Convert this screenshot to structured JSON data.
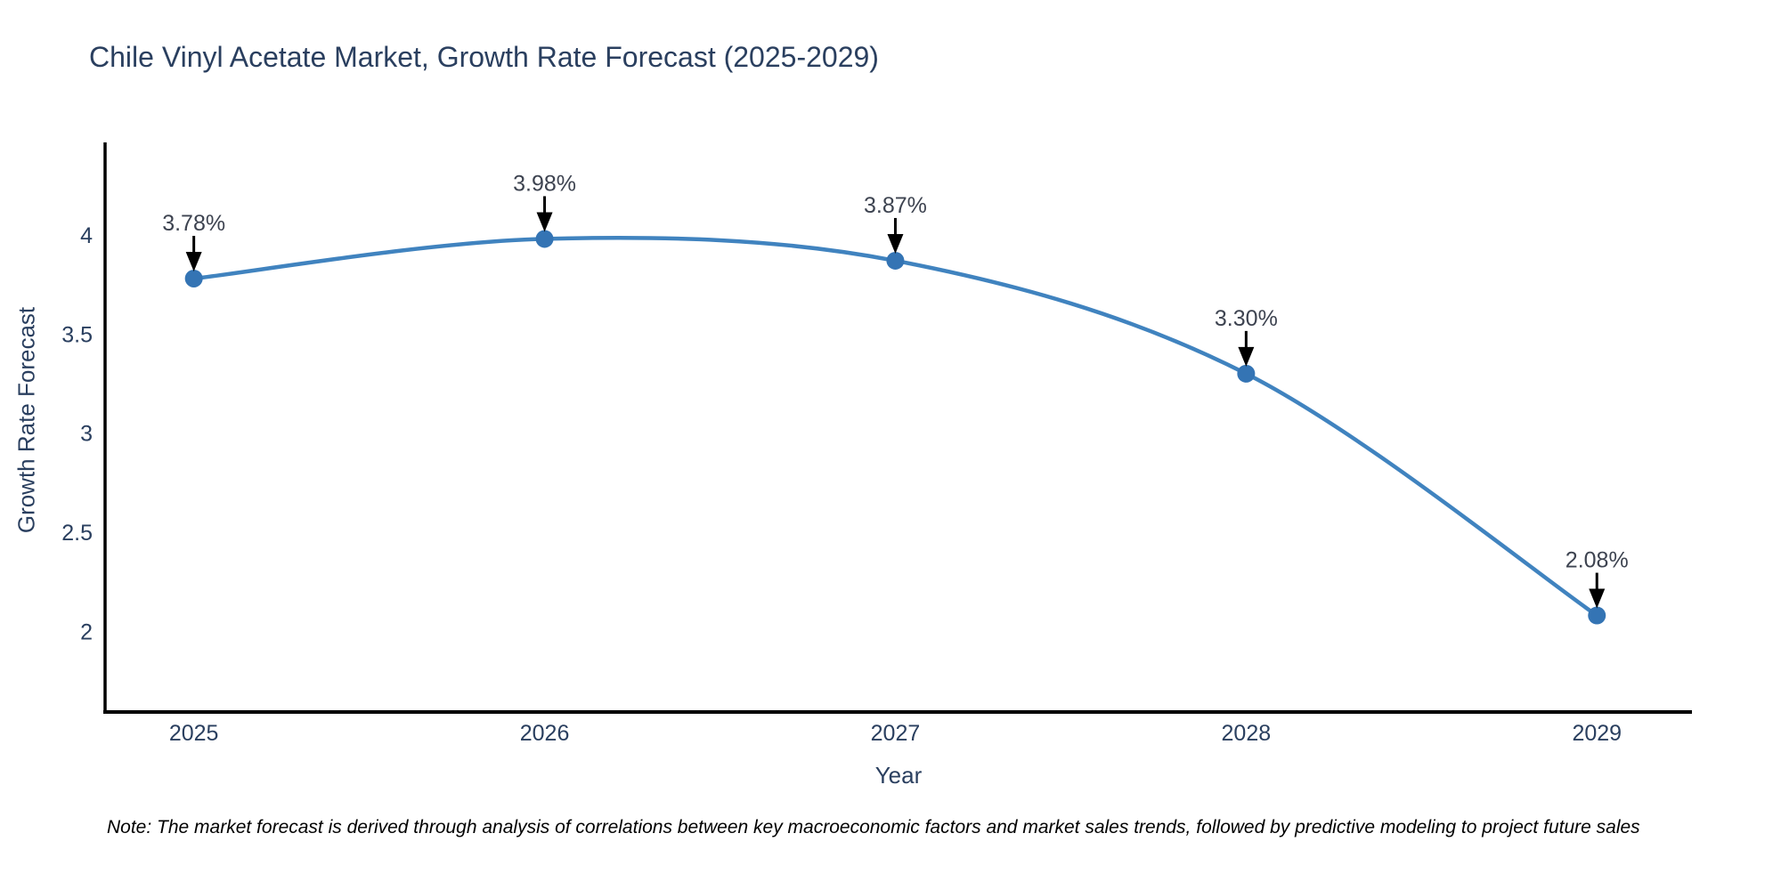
{
  "title": "Chile Vinyl Acetate Market, Growth Rate Forecast (2025-2029)",
  "note": "Note: The market forecast is derived through analysis of correlations between key macroeconomic factors and market sales trends, followed by predictive modeling to project future sales",
  "chart_data": {
    "type": "line",
    "line_shape": "spline",
    "x": [
      2025,
      2026,
      2027,
      2028,
      2029
    ],
    "y": [
      3.78,
      3.98,
      3.87,
      3.3,
      2.08
    ],
    "point_labels": [
      "3.78%",
      "3.98%",
      "3.87%",
      "3.30%",
      "2.08%"
    ],
    "series_name": "Growth Rate Forecast",
    "title": "Chile Vinyl Acetate Market, Growth Rate Forecast (2025-2029)",
    "xlabel": "Year",
    "ylabel": "Growth Rate Forecast",
    "xticks": [
      "2025",
      "2026",
      "2027",
      "2028",
      "2029"
    ],
    "yticks": [
      "2",
      "2.5",
      "3",
      "3.5",
      "4"
    ],
    "xlim": [
      2024.747,
      2029.271
    ],
    "ylim": [
      1.593,
      4.467
    ],
    "grid": false,
    "legend": "none",
    "colors": {
      "line": "#4083bf",
      "marker": "#3474b4",
      "axis_line": "#000000",
      "arrow": "#000000",
      "tick_text": "#2a3f5f",
      "annotation_text": "#3d4350",
      "background": "#ffffff"
    }
  }
}
